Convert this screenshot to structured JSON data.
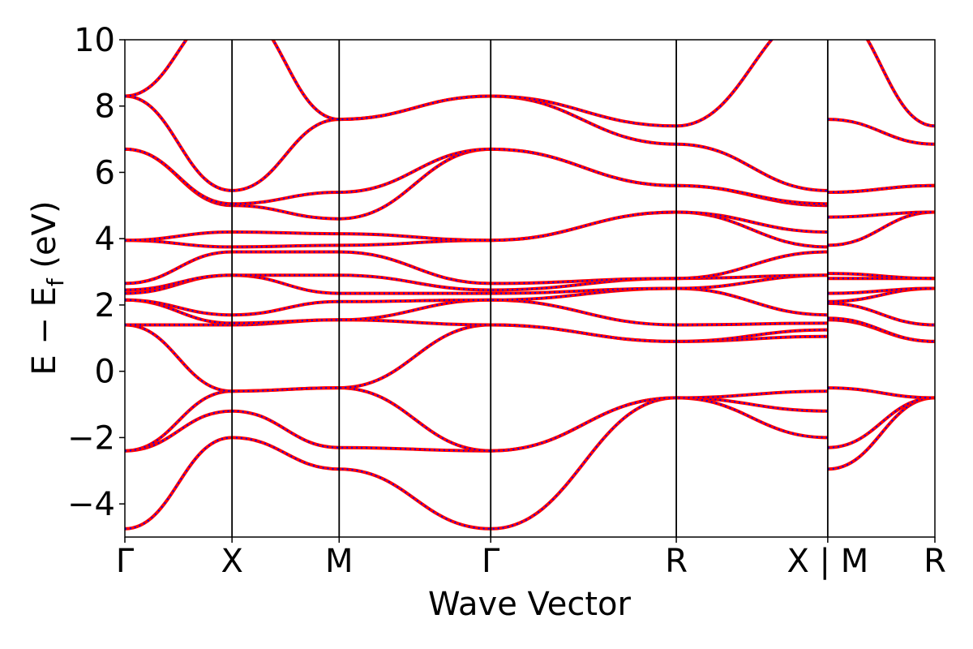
{
  "chart_data": {
    "type": "line",
    "title": "",
    "xlabel": "Wave Vector",
    "ylabel_parts": {
      "main": "E  −  E",
      "subscript": "f",
      "unit": " (eV)"
    },
    "ylim": [
      -5,
      10
    ],
    "yticks": [
      -4,
      -2,
      0,
      2,
      4,
      6,
      8,
      10
    ],
    "ytick_labels": [
      "−4",
      "−2",
      "0",
      "2",
      "4",
      "6",
      "8",
      "10"
    ],
    "kpath": {
      "positions": [
        0,
        0.866,
        1.732,
        2.957,
        4.457,
        5.681,
        6.547
      ],
      "labels": [
        "Γ",
        "X",
        "M",
        "Γ",
        "R",
        "X | M",
        "R"
      ],
      "segments": [
        [
          0,
          0.866
        ],
        [
          0.866,
          1.732
        ],
        [
          1.732,
          2.957
        ],
        [
          2.957,
          4.457
        ],
        [
          4.457,
          5.681
        ],
        [
          5.681,
          6.547
        ]
      ]
    },
    "grid": false,
    "legend": "none",
    "colors": {
      "band": "#ff0000",
      "overlay": "#0000ff",
      "frame": "#000000"
    },
    "series": [
      {
        "values_at_kpoints": [
          -4.75,
          -2.0,
          -2.95,
          -4.75,
          -0.8,
          -1.2,
          -2.95,
          -0.8
        ]
      },
      {
        "values_at_kpoints": [
          -2.4,
          -1.2,
          -2.3,
          -2.4,
          -0.8,
          -2.0,
          -2.3,
          -0.8
        ]
      },
      {
        "values_at_kpoints": [
          -2.4,
          -0.6,
          -0.5,
          -2.4,
          -0.8,
          -0.6,
          -0.5,
          -0.8
        ]
      },
      {
        "values_at_kpoints": [
          1.4,
          -0.6,
          -0.5,
          1.4,
          0.9,
          1.05,
          1.55,
          0.9
        ]
      },
      {
        "values_at_kpoints": [
          1.4,
          1.4,
          1.55,
          1.4,
          0.9,
          1.25,
          1.6,
          0.9
        ]
      },
      {
        "values_at_kpoints": [
          2.15,
          1.45,
          1.55,
          2.15,
          1.4,
          1.45,
          2.05,
          1.4
        ]
      },
      {
        "values_at_kpoints": [
          2.15,
          1.7,
          2.1,
          2.15,
          2.5,
          1.7,
          2.1,
          2.5
        ]
      },
      {
        "values_at_kpoints": [
          2.35,
          2.9,
          2.35,
          2.35,
          2.5,
          2.9,
          2.35,
          2.5
        ]
      },
      {
        "values_at_kpoints": [
          2.45,
          2.9,
          2.9,
          2.45,
          2.8,
          2.9,
          2.8,
          2.8
        ]
      },
      {
        "values_at_kpoints": [
          2.65,
          3.6,
          3.6,
          2.65,
          2.8,
          3.6,
          2.95,
          2.8
        ]
      },
      {
        "values_at_kpoints": [
          3.95,
          3.75,
          3.8,
          3.95,
          4.8,
          3.75,
          3.8,
          4.8
        ]
      },
      {
        "values_at_kpoints": [
          3.95,
          4.2,
          4.15,
          3.95,
          4.8,
          4.2,
          4.65,
          4.8
        ]
      },
      {
        "values_at_kpoints": [
          6.7,
          5.0,
          4.6,
          6.7,
          5.6,
          5.0,
          5.4,
          5.6
        ]
      },
      {
        "values_at_kpoints": [
          6.7,
          5.05,
          5.4,
          6.7,
          5.6,
          5.05,
          5.4,
          5.6
        ]
      },
      {
        "values_at_kpoints": [
          8.3,
          5.45,
          7.6,
          8.3,
          6.85,
          5.45,
          7.6,
          6.85
        ]
      },
      {
        "values_at_kpoints": [
          8.3,
          11.0,
          7.6,
          8.3,
          7.4,
          11.0,
          11.0,
          7.4
        ]
      }
    ]
  }
}
